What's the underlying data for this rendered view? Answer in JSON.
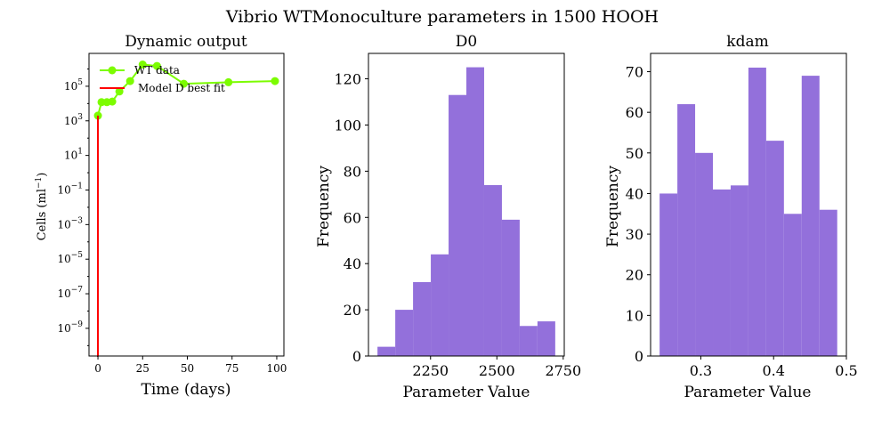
{
  "figure": {
    "suptitle": "Vibrio WTMonoculture parameters in 1500 HOOH"
  },
  "colors": {
    "data_line": "#7CFC00",
    "model_line": "#FF0000",
    "hist_fill": "#9370DB",
    "axis": "#000000"
  },
  "chart_data": [
    {
      "type": "line",
      "title": "Dynamic output",
      "xlabel": "Time (days)",
      "ylabel": "Cells (ml$^{-1}$)",
      "ylabel_main": "Cells (ml",
      "ylabel_sup": "−1",
      "ylabel_end": ")",
      "yscale": "log",
      "xlim": [
        -5,
        104
      ],
      "ylim_log10": [
        -10.6,
        6.9
      ],
      "xticks": [
        0,
        25,
        50,
        75,
        100
      ],
      "xtick_labels": [
        "0",
        "25",
        "50",
        "75",
        "100"
      ],
      "yticks_log10": [
        -9,
        -7,
        -5,
        -3,
        -1,
        1,
        3,
        5
      ],
      "ytick_base": "10",
      "ytick_exps": [
        "−9",
        "−7",
        "−5",
        "−3",
        "−1",
        "1",
        "3",
        "5"
      ],
      "legend_position": "upper-left",
      "series": [
        {
          "name": "WT data",
          "x": [
            0,
            2,
            5,
            8,
            12,
            18,
            25,
            33,
            48,
            73,
            99
          ],
          "y": [
            2000,
            12000,
            12000,
            13000,
            50000,
            200000,
            1800000,
            1500000,
            140000,
            170000,
            200000
          ]
        },
        {
          "name": "Model D best fit",
          "x": [
            0,
            0,
            0.1,
            0.2,
            0.3
          ],
          "y": [
            2000,
            1e-12,
            1e-12,
            1e-12,
            1e-12
          ]
        }
      ]
    },
    {
      "type": "bar",
      "title": "D0",
      "xlabel": "Parameter Value",
      "ylabel": "Frequency",
      "bin_edges": [
        2050,
        2117,
        2184,
        2251,
        2318,
        2385,
        2452,
        2519,
        2586,
        2653,
        2720
      ],
      "values": [
        4,
        20,
        32,
        44,
        113,
        125,
        74,
        59,
        13,
        15
      ],
      "xlim": [
        2016,
        2754
      ],
      "ylim": [
        0,
        131
      ],
      "xticks": [
        2250,
        2500,
        2750
      ],
      "xtick_labels": [
        "2250",
        "2500",
        "2750"
      ],
      "yticks": [
        0,
        20,
        40,
        60,
        80,
        100,
        120
      ],
      "ytick_labels": [
        "0",
        "20",
        "40",
        "60",
        "80",
        "100",
        "120"
      ]
    },
    {
      "type": "bar",
      "title": "kdam",
      "xlabel": "Parameter Value",
      "ylabel": "Frequency",
      "bin_edges": [
        0.2434,
        0.2678,
        0.2922,
        0.3166,
        0.341,
        0.3654,
        0.3898,
        0.4142,
        0.4386,
        0.463,
        0.4874
      ],
      "values": [
        40,
        62,
        50,
        41,
        42,
        71,
        53,
        35,
        69,
        36
      ],
      "xlim": [
        0.231,
        0.5
      ],
      "ylim": [
        0,
        74.5
      ],
      "xticks": [
        0.3,
        0.4,
        0.5
      ],
      "xtick_labels": [
        "0.3",
        "0.4",
        "0.5"
      ],
      "yticks": [
        0,
        10,
        20,
        30,
        40,
        50,
        60,
        70
      ],
      "ytick_labels": [
        "0",
        "10",
        "20",
        "30",
        "40",
        "50",
        "60",
        "70"
      ]
    }
  ]
}
